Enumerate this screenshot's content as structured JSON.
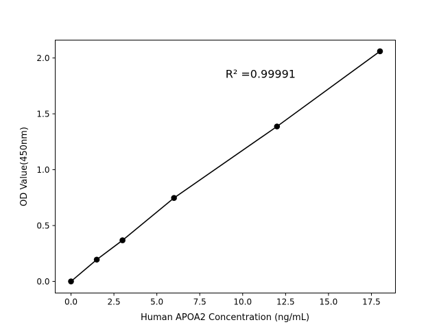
{
  "chart_data": {
    "type": "scatter",
    "title": "",
    "xlabel": "Human APOA2 Concentration (ng/mL)",
    "ylabel": "OD Value(450nm)",
    "xlim": [
      -0.92,
      18.9
    ],
    "ylim": [
      -0.104,
      2.16
    ],
    "xticks": [
      0.0,
      2.5,
      5.0,
      7.5,
      10.0,
      12.5,
      15.0,
      17.5
    ],
    "xtick_labels": [
      "0.0",
      "2.5",
      "5.0",
      "7.5",
      "10.0",
      "12.5",
      "15.0",
      "17.5"
    ],
    "yticks": [
      0.0,
      0.5,
      1.0,
      1.5,
      2.0
    ],
    "ytick_labels": [
      "0.0",
      "0.5",
      "1.0",
      "1.5",
      "2.0"
    ],
    "grid": false,
    "series": [
      {
        "x": [
          0,
          1.5,
          3,
          6,
          12,
          18
        ],
        "y": [
          0.0,
          0.195,
          0.368,
          0.747,
          1.387,
          2.06
        ],
        "marker": "circle",
        "line": true,
        "color": "#000000"
      }
    ],
    "annotations": [
      {
        "text": "R² =0.99991",
        "x": 9.0,
        "y": 1.86
      }
    ]
  }
}
